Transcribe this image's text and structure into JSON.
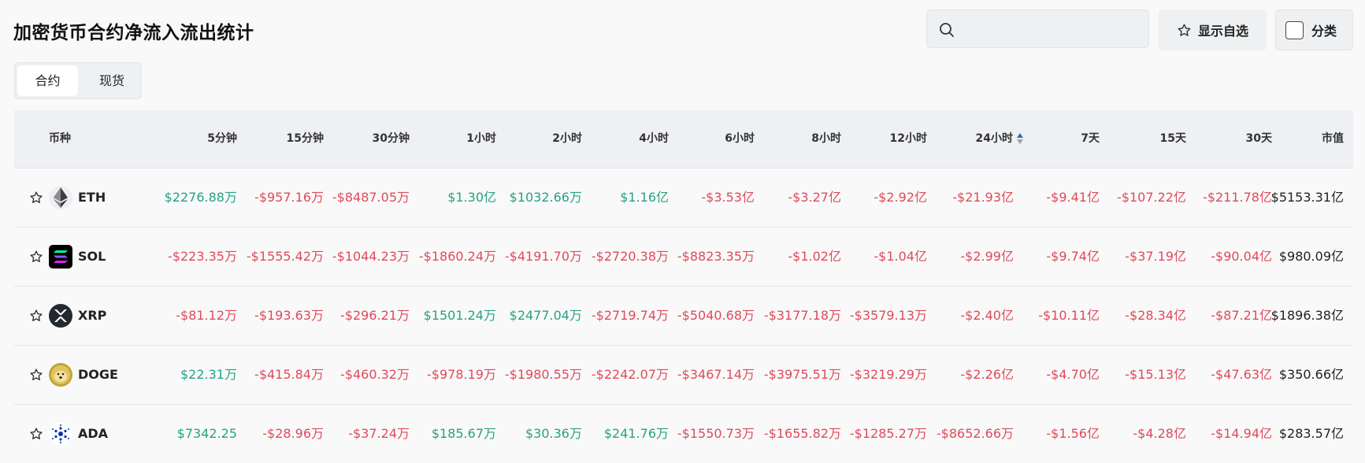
{
  "header": {
    "title": "加密货币合约净流入流出统计",
    "search": {
      "placeholder": "",
      "value": ""
    },
    "watchlist_label": "显示自选",
    "category_label": "分类",
    "category_checked": false
  },
  "tabs": [
    {
      "label": "合约",
      "active": true
    },
    {
      "label": "现货",
      "active": false
    }
  ],
  "columns": [
    "币种",
    "5分钟",
    "15分钟",
    "30分钟",
    "1小时",
    "2小时",
    "4小时",
    "6小时",
    "8小时",
    "12小时",
    "24小时",
    "7天",
    "15天",
    "30天",
    "市值"
  ],
  "sorted_column": "24小时",
  "colors": {
    "positive": "#25a284",
    "negative": "#df4a5a",
    "sort_active": "#2f6fb7"
  },
  "rows": [
    {
      "symbol": "ETH",
      "icon": "eth-logo-icon",
      "values": [
        "$2276.88万",
        "-$957.16万",
        "-$8487.05万",
        "$1.30亿",
        "$1032.66万",
        "$1.16亿",
        "-$3.53亿",
        "-$3.27亿",
        "-$2.92亿",
        "-$21.93亿",
        "-$9.41亿",
        "-$107.22亿",
        "-$211.78亿"
      ],
      "market_cap": "$5153.31亿"
    },
    {
      "symbol": "SOL",
      "icon": "sol-logo-icon",
      "values": [
        "-$223.35万",
        "-$1555.42万",
        "-$1044.23万",
        "-$1860.24万",
        "-$4191.70万",
        "-$2720.38万",
        "-$8823.35万",
        "-$1.02亿",
        "-$1.04亿",
        "-$2.99亿",
        "-$9.74亿",
        "-$37.19亿",
        "-$90.04亿"
      ],
      "market_cap": "$980.09亿"
    },
    {
      "symbol": "XRP",
      "icon": "xrp-logo-icon",
      "values": [
        "-$81.12万",
        "-$193.63万",
        "-$296.21万",
        "$1501.24万",
        "$2477.04万",
        "-$2719.74万",
        "-$5040.68万",
        "-$3177.18万",
        "-$3579.13万",
        "-$2.40亿",
        "-$10.11亿",
        "-$28.34亿",
        "-$87.21亿"
      ],
      "market_cap": "$1896.38亿"
    },
    {
      "symbol": "DOGE",
      "icon": "doge-logo-icon",
      "values": [
        "$22.31万",
        "-$415.84万",
        "-$460.32万",
        "-$978.19万",
        "-$1980.55万",
        "-$2242.07万",
        "-$3467.14万",
        "-$3975.51万",
        "-$3219.29万",
        "-$2.26亿",
        "-$4.70亿",
        "-$15.13亿",
        "-$47.63亿"
      ],
      "market_cap": "$350.66亿"
    },
    {
      "symbol": "ADA",
      "icon": "ada-logo-icon",
      "values": [
        "$7342.25",
        "-$28.96万",
        "-$37.24万",
        "$185.67万",
        "$30.36万",
        "$241.76万",
        "-$1550.73万",
        "-$1655.82万",
        "-$1285.27万",
        "-$8652.66万",
        "-$1.56亿",
        "-$4.28亿",
        "-$14.94亿"
      ],
      "market_cap": "$283.57亿"
    }
  ]
}
